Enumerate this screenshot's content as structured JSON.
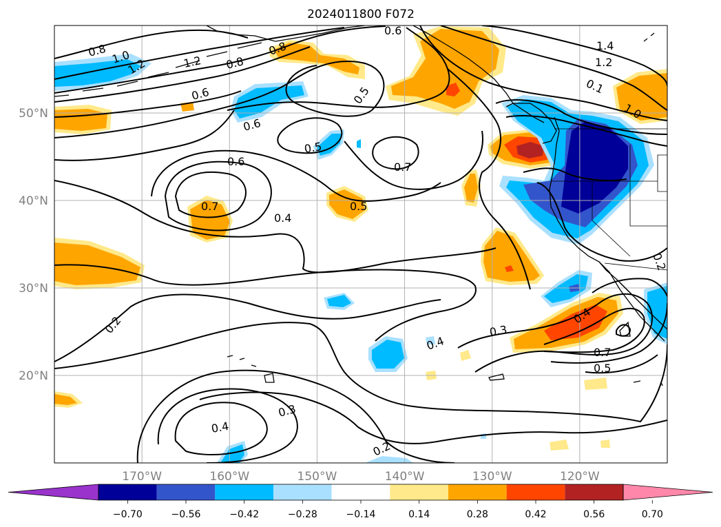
{
  "title": "2024011800 F072",
  "map": {
    "lon_range": [
      -180,
      -110
    ],
    "lat_range": [
      10,
      60
    ],
    "lon_ticks": [
      {
        "value": -170,
        "label": "170°W"
      },
      {
        "value": -160,
        "label": "160°W"
      },
      {
        "value": -150,
        "label": "150°W"
      },
      {
        "value": -140,
        "label": "140°W"
      },
      {
        "value": -130,
        "label": "130°W"
      },
      {
        "value": -120,
        "label": "120°W"
      }
    ],
    "lat_ticks": [
      {
        "value": 20,
        "label": "20°N"
      },
      {
        "value": 30,
        "label": "30°N"
      },
      {
        "value": 40,
        "label": "40°N"
      },
      {
        "value": 50,
        "label": "50°N"
      }
    ],
    "gridlines": true
  },
  "colorbar": {
    "levels": [
      "−0.70",
      "−0.56",
      "−0.42",
      "−0.28",
      "−0.14",
      "0.14",
      "0.28",
      "0.42",
      "0.56",
      "0.70"
    ],
    "colors": [
      "#9933cc",
      "#000099",
      "#3355cc",
      "#00bbff",
      "#aae0ff",
      "#ffffff",
      "#ffe98a",
      "#ffa500",
      "#ff4500",
      "#b22222",
      "#ff88aa"
    ],
    "extend": "both"
  },
  "contour_labels": [
    "0.8",
    "1.0",
    "1.2",
    "0.8",
    "1.2",
    "0.8",
    "0.6",
    "0.5",
    "0.6",
    "1.4",
    "1.2",
    "0.1",
    "1.0",
    "0.6",
    "0.5",
    "0.6",
    "0.7",
    "0.5",
    "0.7",
    "0.4",
    "0.2",
    "0.3",
    "0.4",
    "0.3",
    "0.4",
    "0.7",
    "0.5",
    "0.4",
    "0.2",
    "0.2"
  ]
}
